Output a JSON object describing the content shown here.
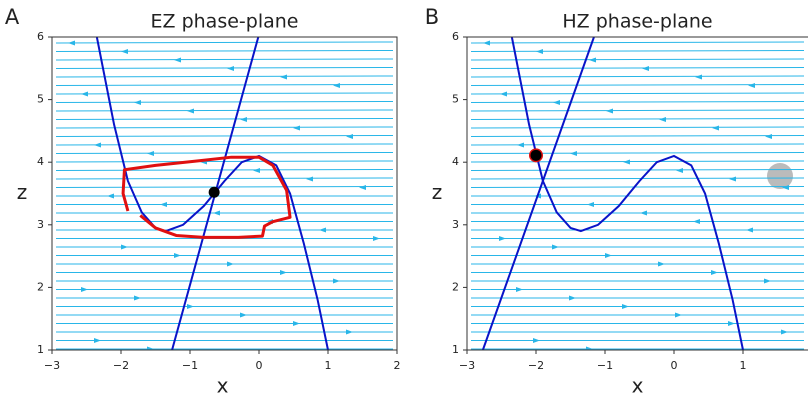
{
  "chart_data": [
    {
      "type": "phase-plane",
      "panel_label": "A",
      "title": "EZ phase-plane",
      "xlabel": "x",
      "ylabel": "z",
      "xlim": [
        -3,
        2
      ],
      "ylim": [
        1,
        6
      ],
      "xticks": [
        {
          "value": -3,
          "label": "−3"
        },
        {
          "value": -2,
          "label": "−2"
        },
        {
          "value": -1,
          "label": "−1"
        },
        0,
        1,
        2
      ],
      "yticks": [
        1,
        2,
        3,
        4,
        5,
        6
      ],
      "stream_color": "#29b6e8",
      "nullclines": [
        {
          "color": "#0a14c8",
          "x": [
            -2.35,
            -2.1,
            -1.9,
            -1.7,
            -1.5,
            -1.35,
            -1.1,
            -0.8,
            -0.5,
            -0.25,
            0,
            0.25,
            0.45,
            0.65,
            0.85,
            1.0
          ],
          "y": [
            6,
            4.6,
            3.7,
            3.2,
            2.95,
            2.9,
            3.0,
            3.3,
            3.7,
            4.0,
            4.1,
            3.95,
            3.5,
            2.7,
            1.8,
            1.0
          ]
        },
        {
          "color": "#0a14c8",
          "x": [
            -1.26,
            -0.01
          ],
          "y": [
            1,
            6
          ]
        }
      ],
      "trajectory": {
        "color": "#e01010",
        "x": [
          -1.72,
          -1.5,
          -1.2,
          -0.8,
          -0.3,
          0.05,
          0.08,
          0.2,
          0.45,
          0.4,
          0.2,
          0.0,
          -0.4,
          -0.9,
          -1.5,
          -1.95,
          -1.97,
          -1.9
        ],
        "y": [
          3.15,
          2.95,
          2.83,
          2.8,
          2.8,
          2.82,
          2.98,
          3.05,
          3.12,
          3.55,
          3.95,
          4.08,
          4.08,
          4.02,
          3.95,
          3.88,
          3.5,
          3.22
        ]
      },
      "fixed_point": {
        "color": "#000000",
        "x": -0.65,
        "y": 3.52
      }
    },
    {
      "type": "phase-plane",
      "panel_label": "B",
      "title": "HZ phase-plane",
      "xlabel": "x",
      "ylabel": "z",
      "xlim": [
        -3,
        2
      ],
      "ylim": [
        1,
        6
      ],
      "xticks": [
        {
          "value": -3,
          "label": "−3"
        },
        {
          "value": -2,
          "label": "−2"
        },
        {
          "value": -1,
          "label": "−1"
        },
        0,
        1
      ],
      "yticks": [
        1,
        2,
        3,
        4,
        5,
        6
      ],
      "stream_color": "#29b6e8",
      "nullclines": [
        {
          "color": "#0a14c8",
          "x": [
            -2.35,
            -2.1,
            -1.9,
            -1.7,
            -1.5,
            -1.35,
            -1.1,
            -0.8,
            -0.5,
            -0.25,
            0,
            0.25,
            0.45,
            0.65,
            0.85,
            1.0
          ],
          "y": [
            6,
            4.6,
            3.7,
            3.2,
            2.95,
            2.9,
            3.0,
            3.3,
            3.7,
            4.0,
            4.1,
            3.95,
            3.5,
            2.7,
            1.8,
            1.0
          ]
        },
        {
          "color": "#0a14c8",
          "x": [
            -2.77,
            -1.16
          ],
          "y": [
            1,
            6
          ]
        }
      ],
      "fixed_point": {
        "color": "#000000",
        "x": -2.0,
        "y": 4.11,
        "ring": "#e01010"
      }
    }
  ]
}
